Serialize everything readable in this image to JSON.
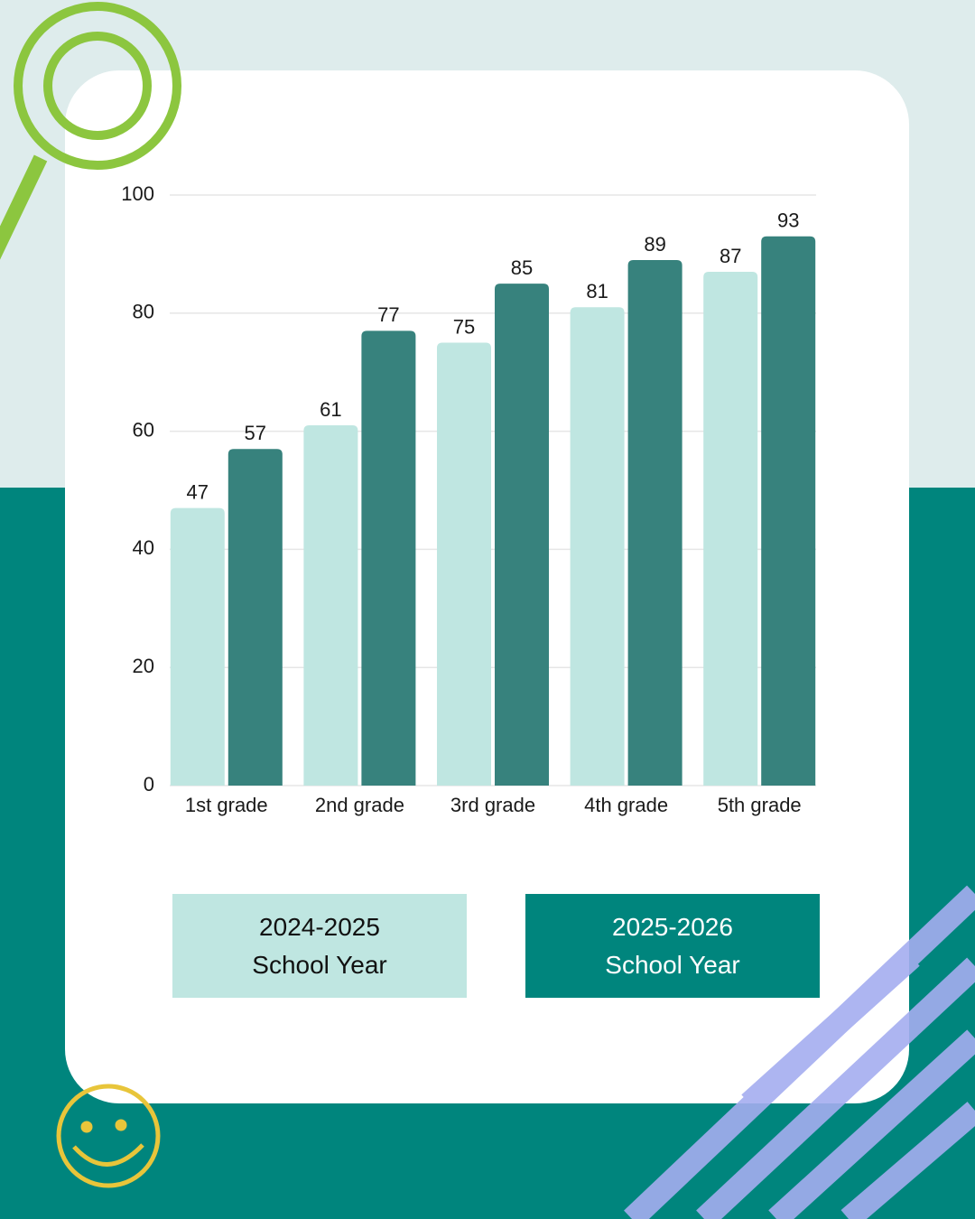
{
  "chart_data": {
    "type": "bar",
    "categories": [
      "1st grade",
      "2nd grade",
      "3rd grade",
      "4th grade",
      "5th grade"
    ],
    "series": [
      {
        "name": "2024-2025 School Year",
        "color": "#bfe6e1",
        "values": [
          47,
          61,
          75,
          81,
          87
        ]
      },
      {
        "name": "2025-2026 School Year",
        "color": "#37827d",
        "values": [
          57,
          77,
          85,
          89,
          93
        ]
      }
    ],
    "ylim": [
      0,
      100
    ],
    "yticks": [
      0,
      20,
      40,
      60,
      80,
      100
    ],
    "grid": true
  }
}
